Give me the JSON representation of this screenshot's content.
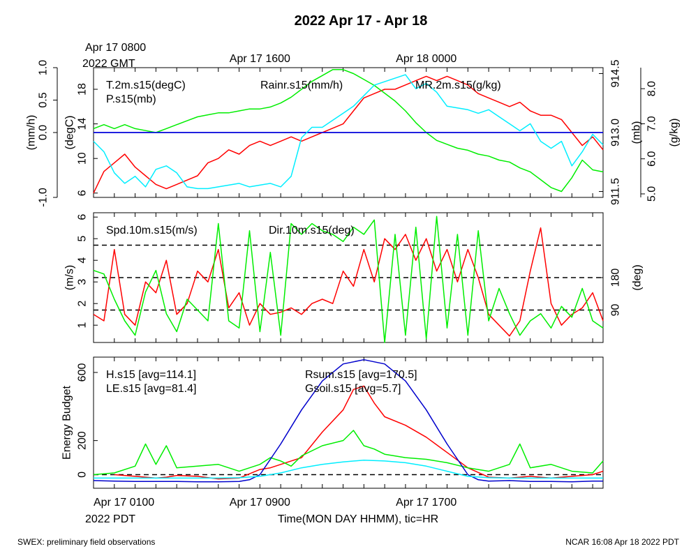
{
  "title": "2022 Apr 17 - Apr 18",
  "top_axis": {
    "gmt_start_line1": "Apr 17 0800",
    "gmt_start_line2": "2022 GMT",
    "ticks": [
      {
        "hour": 8,
        "label": "Apr 17 1600"
      },
      {
        "hour": 16,
        "label": "Apr 18 0000"
      }
    ]
  },
  "bottom_axis": {
    "ticks": [
      {
        "hour": 0,
        "label": "Apr 17 0100"
      },
      {
        "hour": 8,
        "label": "Apr 17 0900"
      },
      {
        "hour": 16,
        "label": "Apr 17 1700"
      }
    ],
    "start_date": "2022 PDT",
    "title": "Time(MON DAY HHMM), tic=HR"
  },
  "footer": {
    "left": "SWEX: preliminary field observations",
    "right": "NCAR 16:08 Apr 18 2022 PDT"
  },
  "chart_data": [
    {
      "type": "line",
      "panel": "met",
      "x_unit": "hours since Apr 17 0100 PDT",
      "xlim": [
        0,
        24.5
      ],
      "axes": {
        "left_outer": {
          "label": "(mm/h)",
          "ylim": [
            -1.0,
            1.0
          ],
          "ticks": [
            {
              "v": -1.0,
              "t": "-1.0"
            },
            {
              "v": 0.0,
              "t": "0.0"
            },
            {
              "v": 0.5,
              "t": "0.5"
            },
            {
              "v": 1.0,
              "t": "1.0"
            }
          ]
        },
        "left_inner": {
          "label": "(degC)",
          "ylim": [
            5.5,
            20.5
          ],
          "ticks": [
            {
              "v": 6,
              "t": "6"
            },
            {
              "v": 10,
              "t": "10"
            },
            {
              "v": 14,
              "t": "14"
            },
            {
              "v": 18,
              "t": "18"
            }
          ]
        },
        "right_inner": {
          "label": "(mb)",
          "ylim": [
            911.35,
            914.65
          ],
          "ticks": [
            {
              "v": 911.5,
              "t": "911.5"
            },
            {
              "v": 913.0,
              "t": "913.0"
            },
            {
              "v": 914.5,
              "t": "914.5"
            }
          ]
        },
        "right_outer": {
          "label": "(g/kg)",
          "ylim": [
            4.9,
            8.6
          ],
          "ticks": [
            {
              "v": 5.0,
              "t": "5.0"
            },
            {
              "v": 6.0,
              "t": "6.0"
            },
            {
              "v": 7.0,
              "t": "7.0"
            },
            {
              "v": 8.0,
              "t": "8.0"
            }
          ]
        }
      },
      "reference_lines": [
        {
          "axis": "left_outer",
          "value": 0.0,
          "style": "solid",
          "color": "#000000"
        }
      ],
      "series": [
        {
          "name": "T.2m.s15(degC)",
          "color": "#ff0000",
          "axis": "left_inner",
          "label_pos": "left",
          "x": [
            0,
            0.5,
            1,
            1.5,
            2,
            2.5,
            3,
            3.5,
            4,
            4.5,
            5,
            5.5,
            6,
            6.5,
            7,
            7.5,
            8,
            8.5,
            9,
            9.5,
            10,
            10.5,
            11,
            11.5,
            12,
            12.5,
            13,
            13.5,
            14,
            14.5,
            15,
            15.5,
            16,
            16.5,
            17,
            17.5,
            18,
            18.5,
            19,
            19.5,
            20,
            20.5,
            21,
            21.5,
            22,
            22.5,
            23,
            23.5,
            24,
            24.5
          ],
          "y": [
            6.0,
            8.5,
            9.5,
            10.5,
            9.0,
            8.0,
            7.0,
            6.5,
            7.0,
            7.5,
            8.0,
            9.5,
            10.0,
            11.0,
            10.5,
            11.5,
            12.0,
            11.5,
            12.0,
            12.5,
            12.0,
            12.5,
            13.0,
            13.5,
            14.0,
            15.5,
            17.0,
            17.5,
            18.0,
            18.0,
            18.5,
            19.0,
            19.5,
            19.0,
            19.5,
            19.0,
            18.5,
            17.5,
            17.0,
            16.5,
            16.0,
            16.5,
            15.5,
            15.0,
            15.0,
            14.5,
            13.0,
            11.5,
            12.5,
            11.0
          ]
        },
        {
          "name": "P.s15(mb)",
          "color": "#00ee00",
          "axis": "right_inner",
          "label_pos": "left",
          "x": [
            0,
            0.5,
            1,
            1.5,
            2,
            2.5,
            3,
            3.5,
            4,
            4.5,
            5,
            5.5,
            6,
            6.5,
            7,
            7.5,
            8,
            8.5,
            9,
            9.5,
            10,
            10.5,
            11,
            11.5,
            12,
            12.5,
            13,
            13.5,
            14,
            14.5,
            15,
            15.5,
            16,
            16.5,
            17,
            17.5,
            18,
            18.5,
            19,
            19.5,
            20,
            20.5,
            21,
            21.5,
            22,
            22.5,
            23,
            23.5,
            24,
            24.5
          ],
          "y": [
            913.1,
            913.2,
            913.1,
            913.2,
            913.1,
            913.05,
            913.0,
            913.1,
            913.2,
            913.3,
            913.4,
            913.45,
            913.5,
            913.5,
            913.55,
            913.6,
            913.6,
            913.65,
            913.75,
            913.9,
            914.1,
            914.3,
            914.45,
            914.6,
            914.6,
            914.5,
            914.35,
            914.2,
            914.0,
            913.8,
            913.55,
            913.25,
            913.0,
            912.8,
            912.7,
            912.6,
            912.55,
            912.45,
            912.4,
            912.3,
            912.25,
            912.1,
            912.0,
            911.8,
            911.6,
            911.5,
            911.85,
            912.3,
            912.05,
            912.0
          ]
        },
        {
          "name": "Rainr.s15(mm/h)",
          "color": "#0000ff",
          "axis": "left_outer",
          "label_pos": "center",
          "x": [
            0,
            24.5
          ],
          "y": [
            0.0,
            0.0
          ]
        },
        {
          "name": "MR.2m.s15(g/kg)",
          "color": "#00eeff",
          "axis": "right_outer",
          "label_pos": "right",
          "x": [
            0,
            0.5,
            1,
            1.5,
            2,
            2.5,
            3,
            3.5,
            4,
            4.5,
            5,
            5.5,
            6,
            6.5,
            7,
            7.5,
            8,
            8.5,
            9,
            9.5,
            10,
            10.5,
            11,
            11.5,
            12,
            12.5,
            13,
            13.5,
            14,
            14.5,
            15,
            15.5,
            16,
            16.5,
            17,
            17.5,
            18,
            18.5,
            19,
            19.5,
            20,
            20.5,
            21,
            21.5,
            22,
            22.5,
            23,
            23.5,
            24,
            24.5
          ],
          "y": [
            6.5,
            6.2,
            5.6,
            5.3,
            5.5,
            5.2,
            5.7,
            5.8,
            5.6,
            5.2,
            5.15,
            5.15,
            5.2,
            5.25,
            5.3,
            5.2,
            5.25,
            5.3,
            5.2,
            5.5,
            6.6,
            6.9,
            6.9,
            7.1,
            7.3,
            7.5,
            7.8,
            8.1,
            8.2,
            8.3,
            8.4,
            8.0,
            8.15,
            7.9,
            7.5,
            7.45,
            7.4,
            7.3,
            7.4,
            7.2,
            7.0,
            6.8,
            7.0,
            6.5,
            6.3,
            6.5,
            5.8,
            6.2,
            6.7,
            6.4
          ]
        }
      ]
    },
    {
      "type": "line",
      "panel": "wind",
      "x_unit": "hours since Apr 17 0100 PDT",
      "xlim": [
        0,
        24.5
      ],
      "axes": {
        "left": {
          "label": "(m/s)",
          "ylim": [
            0.2,
            6.2
          ],
          "ticks": [
            {
              "v": 1,
              "t": "1"
            },
            {
              "v": 2,
              "t": "2"
            },
            {
              "v": 3,
              "t": "3"
            },
            {
              "v": 4,
              "t": "4"
            },
            {
              "v": 5,
              "t": "5"
            },
            {
              "v": 6,
              "t": "6"
            }
          ]
        },
        "right": {
          "label": "(deg)",
          "ylim": [
            0,
            360
          ],
          "ticks": [
            {
              "v": 90,
              "t": "90"
            },
            {
              "v": 180,
              "t": "180"
            }
          ]
        }
      },
      "reference_lines": [
        {
          "axis": "right",
          "value": 90,
          "style": "dashed",
          "color": "#000000"
        },
        {
          "axis": "right",
          "value": 180,
          "style": "dashed",
          "color": "#000000"
        },
        {
          "axis": "right",
          "value": 270,
          "style": "dashed",
          "color": "#000000"
        }
      ],
      "series": [
        {
          "name": "Spd.10m.s15(m/s)",
          "color": "#ff0000",
          "axis": "left",
          "label_pos": "left",
          "x": [
            0,
            0.5,
            1,
            1.5,
            2,
            2.5,
            3,
            3.5,
            4,
            4.5,
            5,
            5.5,
            6,
            6.5,
            7,
            7.5,
            8,
            8.5,
            9,
            9.5,
            10,
            10.5,
            11,
            11.5,
            12,
            12.5,
            13,
            13.5,
            14,
            14.5,
            15,
            15.5,
            16,
            16.5,
            17,
            17.5,
            18,
            18.5,
            19,
            19.5,
            20,
            20.5,
            21,
            21.5,
            22,
            22.5,
            23,
            23.5,
            24,
            24.5
          ],
          "y": [
            1.5,
            1.2,
            4.5,
            1.5,
            1.0,
            3.0,
            2.5,
            4.0,
            1.5,
            2.0,
            3.5,
            3.0,
            4.5,
            1.8,
            2.5,
            1.0,
            2.0,
            1.5,
            1.6,
            1.8,
            1.5,
            2.0,
            2.2,
            2.0,
            3.5,
            2.8,
            4.5,
            3.0,
            5.0,
            4.5,
            5.2,
            4.0,
            5.0,
            3.5,
            4.5,
            3.0,
            4.5,
            3.2,
            1.5,
            1.0,
            0.5,
            1.2,
            3.5,
            5.5,
            2.0,
            1.0,
            1.5,
            1.8,
            2.5,
            1.2
          ]
        },
        {
          "name": "Dir.10m.s15(deg)",
          "color": "#00ee00",
          "axis": "right",
          "label_pos": "center",
          "x": [
            0,
            0.5,
            1,
            1.5,
            2,
            2.5,
            3,
            3.5,
            4,
            4.5,
            5,
            5.5,
            6,
            6.5,
            7,
            7.5,
            8,
            8.5,
            9,
            9.5,
            10,
            10.5,
            11,
            11.5,
            12,
            12.5,
            13,
            13.5,
            14,
            14.5,
            15,
            15.5,
            16,
            16.5,
            17,
            17.5,
            18,
            18.5,
            19,
            19.5,
            20,
            20.5,
            21,
            21.5,
            22,
            22.5,
            23,
            23.5,
            24,
            24.5
          ],
          "y": [
            200,
            190,
            120,
            60,
            20,
            140,
            200,
            80,
            30,
            120,
            90,
            60,
            330,
            60,
            40,
            310,
            30,
            250,
            20,
            330,
            300,
            330,
            310,
            300,
            280,
            320,
            300,
            340,
            0,
            300,
            20,
            320,
            10,
            350,
            40,
            300,
            20,
            310,
            60,
            150,
            80,
            20,
            60,
            80,
            40,
            100,
            70,
            150,
            60,
            40
          ]
        }
      ]
    },
    {
      "type": "line",
      "panel": "energy",
      "x_unit": "hours since Apr 17 0100 PDT",
      "xlim": [
        0,
        24.5
      ],
      "axes": {
        "left": {
          "label": "Energy Budget",
          "ylim": [
            -80,
            690
          ],
          "ticks": [
            {
              "v": 0,
              "t": "0"
            },
            {
              "v": 200,
              "t": "200"
            },
            {
              "v": 600,
              "t": "600"
            }
          ]
        }
      },
      "reference_lines": [
        {
          "axis": "left",
          "value": 0,
          "style": "dashed",
          "color": "#000000"
        }
      ],
      "series": [
        {
          "name": "H.s15 [avg=114.1]",
          "color": "#ff0000",
          "axis": "left",
          "label_pos": "left",
          "row": 0,
          "x": [
            1,
            2,
            3,
            3.5,
            4,
            5,
            6,
            7,
            8,
            8.5,
            9,
            9.5,
            10,
            11,
            12,
            12.5,
            13,
            13.5,
            14,
            15,
            16,
            17,
            18,
            19,
            20,
            21,
            22,
            23,
            24,
            24.5
          ],
          "y": [
            0,
            -10,
            -20,
            -15,
            -5,
            -10,
            -25,
            -20,
            30,
            40,
            60,
            80,
            100,
            250,
            380,
            500,
            520,
            420,
            340,
            290,
            220,
            130,
            40,
            -15,
            -20,
            -10,
            -20,
            -10,
            0,
            20
          ]
        },
        {
          "name": "LE.s15 [avg=81.4]",
          "color": "#00ee00",
          "axis": "left",
          "label_pos": "left",
          "row": 1,
          "x": [
            0,
            1,
            2,
            2.5,
            3,
            3.5,
            4,
            5,
            6,
            7,
            8,
            8.5,
            9,
            9.5,
            10,
            11,
            12,
            12.5,
            13,
            13.5,
            14,
            15,
            16,
            17,
            18,
            19,
            20,
            20.5,
            21,
            22,
            23,
            24,
            24.5
          ],
          "y": [
            0,
            10,
            50,
            180,
            60,
            170,
            40,
            50,
            60,
            20,
            60,
            100,
            80,
            50,
            110,
            170,
            200,
            260,
            170,
            150,
            120,
            100,
            90,
            70,
            40,
            20,
            60,
            180,
            40,
            60,
            20,
            10,
            80
          ]
        },
        {
          "name": "Rsum.s15 [avg=170.5]",
          "color": "#0000cc",
          "axis": "left",
          "label_pos": "center",
          "row": 0,
          "x": [
            0,
            1,
            2,
            3,
            4,
            5,
            6,
            7,
            7.5,
            8,
            9,
            10,
            11,
            12,
            13,
            14,
            15,
            16,
            17,
            18,
            18.5,
            19,
            20,
            21,
            22,
            23,
            24,
            24.5
          ],
          "y": [
            -35,
            -38,
            -40,
            -40,
            -40,
            -42,
            -42,
            -40,
            -30,
            0,
            180,
            380,
            550,
            650,
            675,
            650,
            550,
            380,
            180,
            0,
            -30,
            -38,
            -35,
            -40,
            -40,
            -42,
            -38,
            -38
          ]
        },
        {
          "name": "Gsoil.s15 [avg=5.7]",
          "color": "#00eeff",
          "axis": "left",
          "label_pos": "center",
          "row": 1,
          "x": [
            0,
            1,
            2,
            3,
            4,
            5,
            6,
            7,
            8,
            9,
            10,
            11,
            12,
            13,
            14,
            15,
            16,
            17,
            18,
            19,
            20,
            21,
            22,
            23,
            24,
            24.5
          ],
          "y": [
            -20,
            -20,
            -20,
            -20,
            -20,
            -20,
            -20,
            -18,
            -10,
            10,
            40,
            60,
            75,
            85,
            80,
            70,
            50,
            20,
            -10,
            -18,
            -20,
            -20,
            -20,
            -20,
            -20,
            -20
          ]
        }
      ]
    }
  ]
}
